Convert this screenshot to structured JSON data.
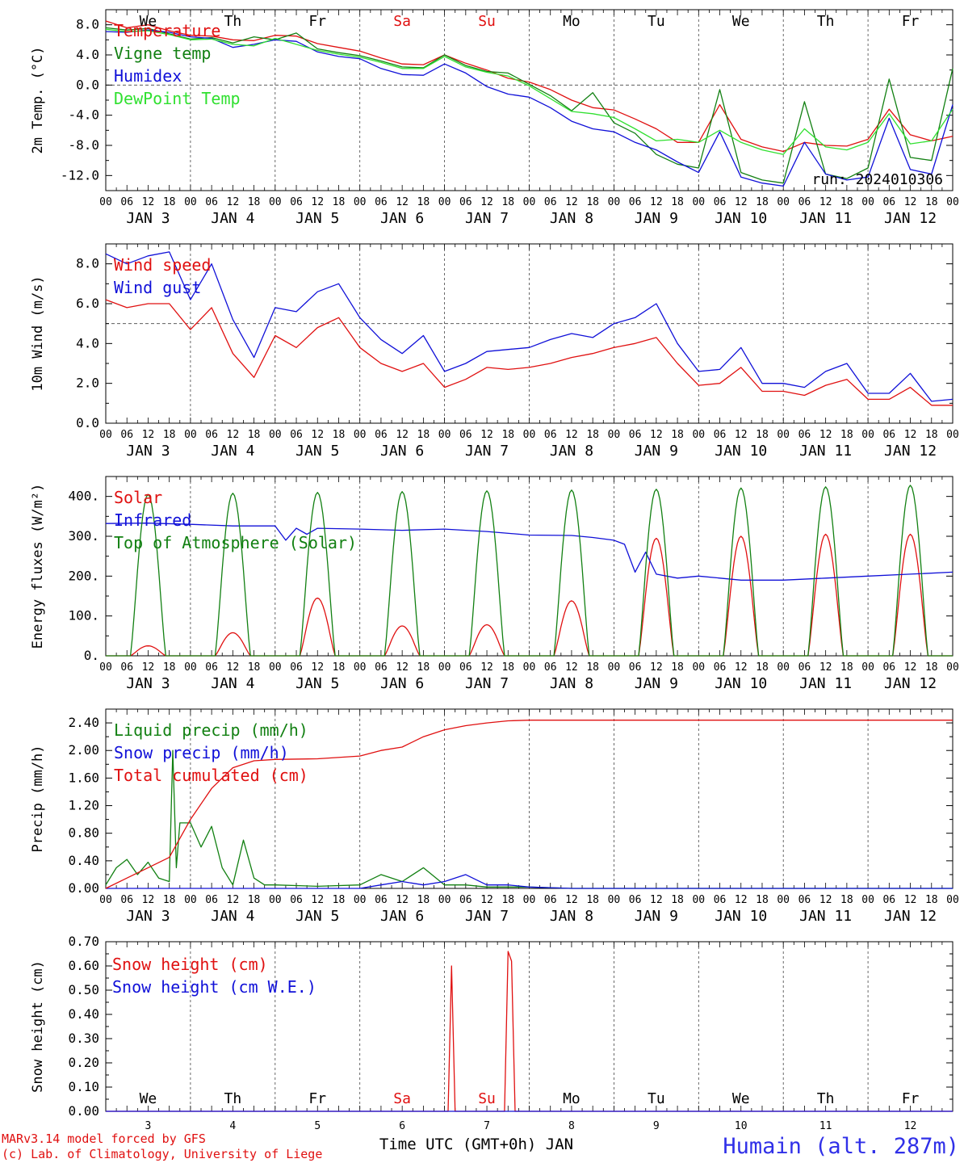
{
  "colors": {
    "red": "#e01010",
    "green": "#128012",
    "blue": "#1010d8",
    "lightgreen": "#30e030",
    "axis": "#000000",
    "title_blue": "#3030e8"
  },
  "time_axis": {
    "hour_ticks": [
      "00",
      "06",
      "12",
      "18"
    ],
    "last_tick": "00",
    "day_labels": [
      "JAN  3",
      "JAN  4",
      "JAN  5",
      "JAN  6",
      "JAN  7",
      "JAN  8",
      "JAN  9",
      "JAN 10",
      "JAN 11",
      "JAN 12"
    ],
    "weekdays": [
      "We",
      "Th",
      "Fr",
      "Sa",
      "Su",
      "Mo",
      "Tu",
      "We",
      "Th",
      "Fr"
    ],
    "weekday_colors": [
      "#000000",
      "#000000",
      "#000000",
      "#e01010",
      "#e01010",
      "#000000",
      "#000000",
      "#000000",
      "#000000",
      "#000000"
    ],
    "day_numbers": [
      "3",
      "4",
      "5",
      "6",
      "7",
      "8",
      "9",
      "10",
      "11",
      "12"
    ]
  },
  "footer": {
    "model_line": "MARv3.14 model forced by GFS",
    "lab_line": "(c) Lab. of Climatology, University of Liege",
    "xlabel": "Time UTC (GMT+0h) JAN",
    "station": "Humain (alt. 287m)"
  },
  "chart_data": [
    {
      "id": "temperature",
      "type": "line",
      "ylabel": "2m Temp. (°C)",
      "ylim": [
        -14,
        10
      ],
      "yticks": [
        -12,
        -8,
        -4,
        0,
        4,
        8
      ],
      "ytick_labels": [
        "-12.0",
        "-8.0",
        "-4.0",
        "0.0",
        "4.0",
        "8.0"
      ],
      "reference_line": 0,
      "run_label": "run: 2024010306",
      "x_unit": "hours since JAN 3 00 UTC",
      "series": [
        {
          "name": "Temperature",
          "color": "#e01010",
          "x": [
            0,
            6,
            12,
            18,
            24,
            30,
            36,
            42,
            48,
            54,
            60,
            66,
            72,
            78,
            84,
            90,
            96,
            102,
            108,
            114,
            120,
            126,
            132,
            138,
            144,
            150,
            156,
            162,
            168,
            174,
            180,
            186,
            192,
            198,
            204,
            210,
            216,
            222,
            228,
            234,
            240
          ],
          "values": [
            8.5,
            7.6,
            8.0,
            7.2,
            6.6,
            6.5,
            6.0,
            5.9,
            6.6,
            6.5,
            5.5,
            5.0,
            4.5,
            3.6,
            2.8,
            2.7,
            4.0,
            2.9,
            2.0,
            0.9,
            0.4,
            -0.6,
            -2.0,
            -3.0,
            -3.3,
            -4.5,
            -5.8,
            -7.6,
            -7.6,
            -2.6,
            -7.2,
            -8.2,
            -8.8,
            -7.6,
            -8.0,
            -8.1,
            -7.2,
            -3.2,
            -6.6,
            -7.4,
            -6.8
          ]
        },
        {
          "name": "Vigne temp",
          "color": "#128012",
          "x": [
            0,
            6,
            12,
            18,
            24,
            30,
            36,
            42,
            48,
            54,
            60,
            66,
            72,
            78,
            84,
            90,
            96,
            102,
            108,
            114,
            120,
            126,
            132,
            138,
            144,
            150,
            156,
            162,
            168,
            174,
            180,
            186,
            192,
            198,
            204,
            210,
            216,
            222,
            228,
            234,
            240
          ],
          "values": [
            7.6,
            7.3,
            7.5,
            6.8,
            6.1,
            6.3,
            5.6,
            6.4,
            6.0,
            6.9,
            4.8,
            4.3,
            3.9,
            3.2,
            2.4,
            2.3,
            4.0,
            2.6,
            1.8,
            1.6,
            0.1,
            -1.4,
            -3.4,
            -1.0,
            -5.0,
            -6.4,
            -9.2,
            -10.5,
            -11.0,
            -0.6,
            -11.6,
            -12.6,
            -13.0,
            -2.2,
            -11.8,
            -12.4,
            -11.0,
            0.8,
            -9.6,
            -10.0,
            2.2
          ]
        },
        {
          "name": "Humidex",
          "color": "#1010d8",
          "x": [
            0,
            6,
            12,
            18,
            24,
            30,
            36,
            42,
            48,
            54,
            60,
            66,
            72,
            78,
            84,
            90,
            96,
            102,
            108,
            114,
            120,
            126,
            132,
            138,
            144,
            150,
            156,
            162,
            168,
            174,
            180,
            186,
            192,
            198,
            204,
            210,
            216,
            222,
            228,
            234,
            240
          ],
          "values": [
            7.1,
            7.0,
            7.3,
            7.0,
            6.4,
            6.2,
            5.0,
            5.4,
            6.0,
            5.8,
            4.4,
            3.8,
            3.5,
            2.2,
            1.4,
            1.3,
            2.8,
            1.6,
            -0.2,
            -1.2,
            -1.6,
            -3.0,
            -4.8,
            -5.8,
            -6.2,
            -7.6,
            -8.6,
            -10.2,
            -11.6,
            -6.2,
            -12.2,
            -13.0,
            -13.4,
            -7.6,
            -11.8,
            -12.6,
            -12.2,
            -4.4,
            -11.2,
            -11.8,
            -2.6
          ]
        },
        {
          "name": "DewPoint Temp",
          "color": "#30e030",
          "x": [
            0,
            6,
            12,
            18,
            24,
            30,
            36,
            42,
            48,
            54,
            60,
            66,
            72,
            78,
            84,
            90,
            96,
            102,
            108,
            114,
            120,
            126,
            132,
            138,
            144,
            150,
            156,
            162,
            168,
            174,
            180,
            186,
            192,
            198,
            204,
            210,
            216,
            222,
            228,
            234,
            240
          ],
          "values": [
            7.4,
            7.1,
            7.2,
            6.7,
            6.0,
            6.1,
            5.4,
            5.2,
            6.2,
            5.4,
            4.6,
            4.1,
            3.7,
            3.0,
            2.2,
            2.2,
            3.8,
            2.4,
            1.7,
            1.2,
            -0.1,
            -1.8,
            -3.5,
            -3.8,
            -4.3,
            -5.8,
            -7.4,
            -7.2,
            -7.6,
            -6.0,
            -7.6,
            -8.6,
            -9.2,
            -5.8,
            -8.2,
            -8.6,
            -7.6,
            -3.8,
            -7.8,
            -7.4,
            -3.2
          ]
        }
      ]
    },
    {
      "id": "wind",
      "type": "line",
      "ylabel": "10m Wind (m/s)",
      "ylim": [
        0,
        9
      ],
      "yticks": [
        0,
        2,
        4,
        6,
        8
      ],
      "ytick_labels": [
        "0.0",
        "2.0",
        "4.0",
        "6.0",
        "8.0"
      ],
      "reference_line": 5,
      "x_unit": "hours since JAN 3 00 UTC",
      "series": [
        {
          "name": "Wind speed",
          "color": "#e01010",
          "x": [
            0,
            6,
            12,
            18,
            24,
            30,
            36,
            42,
            48,
            54,
            60,
            66,
            72,
            78,
            84,
            90,
            96,
            102,
            108,
            114,
            120,
            126,
            132,
            138,
            144,
            150,
            156,
            162,
            168,
            174,
            180,
            186,
            192,
            198,
            204,
            210,
            216,
            222,
            228,
            234,
            240
          ],
          "values": [
            6.2,
            5.8,
            6.0,
            6.0,
            4.7,
            5.8,
            3.5,
            2.3,
            4.4,
            3.8,
            4.8,
            5.3,
            3.8,
            3.0,
            2.6,
            3.0,
            1.8,
            2.2,
            2.8,
            2.7,
            2.8,
            3.0,
            3.3,
            3.5,
            3.8,
            4.0,
            4.3,
            3.0,
            1.9,
            2.0,
            2.8,
            1.6,
            1.6,
            1.4,
            1.9,
            2.2,
            1.2,
            1.2,
            1.8,
            0.9,
            0.9
          ]
        },
        {
          "name": "Wind gust",
          "color": "#1010d8",
          "x": [
            0,
            6,
            12,
            18,
            24,
            30,
            36,
            42,
            48,
            54,
            60,
            66,
            72,
            78,
            84,
            90,
            96,
            102,
            108,
            114,
            120,
            126,
            132,
            138,
            144,
            150,
            156,
            162,
            168,
            174,
            180,
            186,
            192,
            198,
            204,
            210,
            216,
            222,
            228,
            234,
            240
          ],
          "values": [
            8.5,
            8.0,
            8.4,
            8.6,
            6.2,
            8.0,
            5.2,
            3.3,
            5.8,
            5.6,
            6.6,
            7.0,
            5.3,
            4.2,
            3.5,
            4.4,
            2.6,
            3.0,
            3.6,
            3.7,
            3.8,
            4.2,
            4.5,
            4.3,
            5.0,
            5.3,
            6.0,
            4.0,
            2.6,
            2.7,
            3.8,
            2.0,
            2.0,
            1.8,
            2.6,
            3.0,
            1.5,
            1.5,
            2.5,
            1.1,
            1.2
          ]
        }
      ]
    },
    {
      "id": "energy",
      "type": "line",
      "ylabel": "Energy fluxes (W/m²)",
      "ylim": [
        0,
        450
      ],
      "yticks": [
        0,
        100,
        200,
        300,
        400
      ],
      "ytick_labels": [
        "0.",
        "100.",
        "200.",
        "300.",
        "400."
      ],
      "x_unit": "hours since JAN 3 00 UTC",
      "daily_peak_hour": 12,
      "daylight_hours": [
        7,
        17
      ],
      "series": [
        {
          "name": "Solar",
          "color": "#e01010",
          "daily_peaks": [
            25,
            58,
            145,
            75,
            78,
            138,
            295,
            300,
            305,
            305
          ]
        },
        {
          "name": "Infrared",
          "color": "#1010d8",
          "x": [
            0,
            12,
            24,
            36,
            48,
            51,
            54,
            57,
            60,
            72,
            84,
            96,
            108,
            120,
            132,
            138,
            144,
            147,
            150,
            153,
            156,
            162,
            168,
            180,
            192,
            204,
            216,
            228,
            240
          ],
          "values": [
            332,
            333,
            330,
            326,
            326,
            290,
            320,
            305,
            320,
            318,
            315,
            318,
            312,
            303,
            302,
            297,
            290,
            280,
            210,
            260,
            205,
            195,
            200,
            190,
            190,
            195,
            200,
            205,
            210
          ]
        },
        {
          "name": "Top of Atmosphere (Solar)",
          "color": "#128012",
          "daily_peaks": [
            405,
            408,
            410,
            412,
            414,
            416,
            418,
            421,
            424,
            428
          ]
        }
      ]
    },
    {
      "id": "precip",
      "type": "line",
      "ylabel": "Precip (mm/h)",
      "ylim": [
        0,
        2.6
      ],
      "yticks": [
        0,
        0.4,
        0.8,
        1.2,
        1.6,
        2.0,
        2.4
      ],
      "ytick_labels": [
        "0.00",
        "0.40",
        "0.80",
        "1.20",
        "1.60",
        "2.00",
        "2.40"
      ],
      "x_unit": "hours since JAN 3 00 UTC",
      "series": [
        {
          "name": "Liquid precip (mm/h)",
          "color": "#128012",
          "x": [
            0,
            3,
            6,
            9,
            12,
            15,
            18,
            19,
            20,
            21,
            24,
            27,
            30,
            33,
            36,
            39,
            42,
            45,
            48,
            60,
            72,
            78,
            84,
            90,
            96,
            102,
            108,
            114,
            120,
            132,
            240
          ],
          "values": [
            0.05,
            0.3,
            0.42,
            0.2,
            0.38,
            0.15,
            0.1,
            2.0,
            0.3,
            0.95,
            0.95,
            0.6,
            0.9,
            0.3,
            0.05,
            0.7,
            0.15,
            0.05,
            0.05,
            0.03,
            0.05,
            0.2,
            0.1,
            0.3,
            0.05,
            0.05,
            0.02,
            0.02,
            0.02,
            0.0,
            0.0
          ]
        },
        {
          "name": "Snow precip (mm/h)",
          "color": "#1010d8",
          "x": [
            0,
            72,
            78,
            84,
            90,
            96,
            102,
            108,
            114,
            120,
            132,
            240
          ],
          "values": [
            0.0,
            0.0,
            0.05,
            0.1,
            0.05,
            0.1,
            0.2,
            0.05,
            0.05,
            0.02,
            0.0,
            0.0
          ]
        },
        {
          "name": "Total cumulated (cm)",
          "color": "#e01010",
          "x": [
            0,
            6,
            12,
            18,
            24,
            30,
            36,
            42,
            48,
            60,
            72,
            78,
            84,
            90,
            96,
            102,
            108,
            114,
            120,
            132,
            240
          ],
          "values": [
            0.0,
            0.15,
            0.3,
            0.45,
            1.0,
            1.45,
            1.75,
            1.85,
            1.87,
            1.88,
            1.92,
            2.0,
            2.05,
            2.2,
            2.3,
            2.36,
            2.4,
            2.43,
            2.44,
            2.44,
            2.44
          ]
        }
      ]
    },
    {
      "id": "snow",
      "type": "line",
      "ylabel": "Snow height (cm)",
      "ylim": [
        0,
        0.7
      ],
      "yticks": [
        0,
        0.1,
        0.2,
        0.3,
        0.4,
        0.5,
        0.6,
        0.7
      ],
      "ytick_labels": [
        "0.00",
        "0.10",
        "0.20",
        "0.30",
        "0.40",
        "0.50",
        "0.60",
        "0.70"
      ],
      "x_unit": "hours since JAN 3 00 UTC",
      "series": [
        {
          "name": "Snow height (cm)",
          "color": "#e01010",
          "x": [
            0,
            97,
            98,
            99,
            100,
            113,
            114,
            115,
            116,
            240
          ],
          "values": [
            0,
            0,
            0.6,
            0,
            0,
            0,
            0.66,
            0.62,
            0,
            0
          ]
        },
        {
          "name": "Snow height (cm W.E.)",
          "color": "#1010d8",
          "x": [
            0,
            240
          ],
          "values": [
            0,
            0
          ]
        }
      ]
    }
  ]
}
